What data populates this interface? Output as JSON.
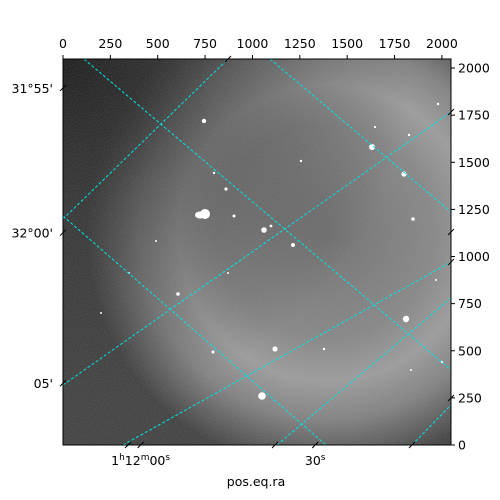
{
  "chart_data": {
    "type": "image",
    "projection": "WCS sky image (equatorial RA/Dec grid overlay)",
    "colormap": "gray",
    "pixel_axes": {
      "x": {
        "range": [
          0,
          2048
        ],
        "ticks": [
          0,
          250,
          500,
          750,
          1000,
          1250,
          1500,
          1750,
          2000
        ],
        "labels": [
          "0",
          "250",
          "500",
          "750",
          "1000",
          "1250",
          "1500",
          "1750",
          "2000"
        ],
        "position": "top"
      },
      "y": {
        "range": [
          0,
          2048
        ],
        "ticks": [
          0,
          250,
          500,
          750,
          1000,
          1250,
          1500,
          1750,
          2000
        ],
        "labels": [
          "0",
          "250",
          "500",
          "750",
          "1000",
          "1250",
          "1500",
          "1750",
          "2000"
        ],
        "position": "right"
      }
    },
    "world_axes": {
      "ra": {
        "label": "pos.eq.ra",
        "ticks": [
          {
            "text": "1h12m00s",
            "major": "1",
            "major_sup": "h",
            "mid": "12",
            "mid_sup": "m",
            "minor": "00",
            "minor_sup": "s",
            "x_frac": 0.2
          },
          {
            "text": "30s",
            "minor": "30",
            "minor_sup": "s",
            "x_frac": 0.65
          }
        ]
      },
      "dec": {
        "label": "",
        "ticks": [
          {
            "text": "31°55'",
            "y_frac": 0.075
          },
          {
            "text": "32°00'",
            "y_frac": 0.45
          },
          {
            "text": "05'",
            "y_frac": 0.84
          }
        ]
      }
    },
    "grid": true,
    "grid_color": "#00e5e5",
    "grid_style": "dashed"
  }
}
